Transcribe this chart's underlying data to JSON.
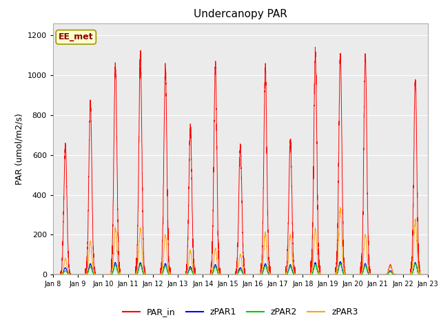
{
  "title": "Undercanopy PAR",
  "ylabel": "PAR (umol/m2/s)",
  "xlabel": "",
  "ylim": [
    0,
    1260
  ],
  "yticks": [
    0,
    200,
    400,
    600,
    800,
    1000,
    1200
  ],
  "annotation_text": "EE_met",
  "annotation_color": "#8B0000",
  "annotation_bg": "#FFFFCC",
  "annotation_edge": "#999900",
  "bg_color": "#EBEBEB",
  "legend_entries": [
    "PAR_in",
    "zPAR1",
    "zPAR2",
    "zPAR3"
  ],
  "legend_colors": [
    "#FF0000",
    "#0000FF",
    "#00CC00",
    "#FFA500"
  ],
  "n_days": 15,
  "start_day": 8,
  "seed": 42,
  "par_peaks": [
    650,
    860,
    1060,
    1090,
    1040,
    740,
    1040,
    650,
    1030,
    680,
    1110,
    1100,
    1090,
    50,
    975
  ],
  "zpar3_peaks": [
    80,
    165,
    230,
    230,
    200,
    120,
    130,
    100,
    210,
    200,
    230,
    330,
    200,
    40,
    275
  ],
  "zpar1_peaks": [
    35,
    55,
    60,
    60,
    55,
    40,
    50,
    35,
    55,
    50,
    60,
    65,
    55,
    20,
    60
  ],
  "zpar2_peaks": [
    20,
    40,
    50,
    50,
    45,
    30,
    40,
    25,
    45,
    40,
    50,
    55,
    45,
    15,
    55
  ],
  "points_per_day": 288
}
